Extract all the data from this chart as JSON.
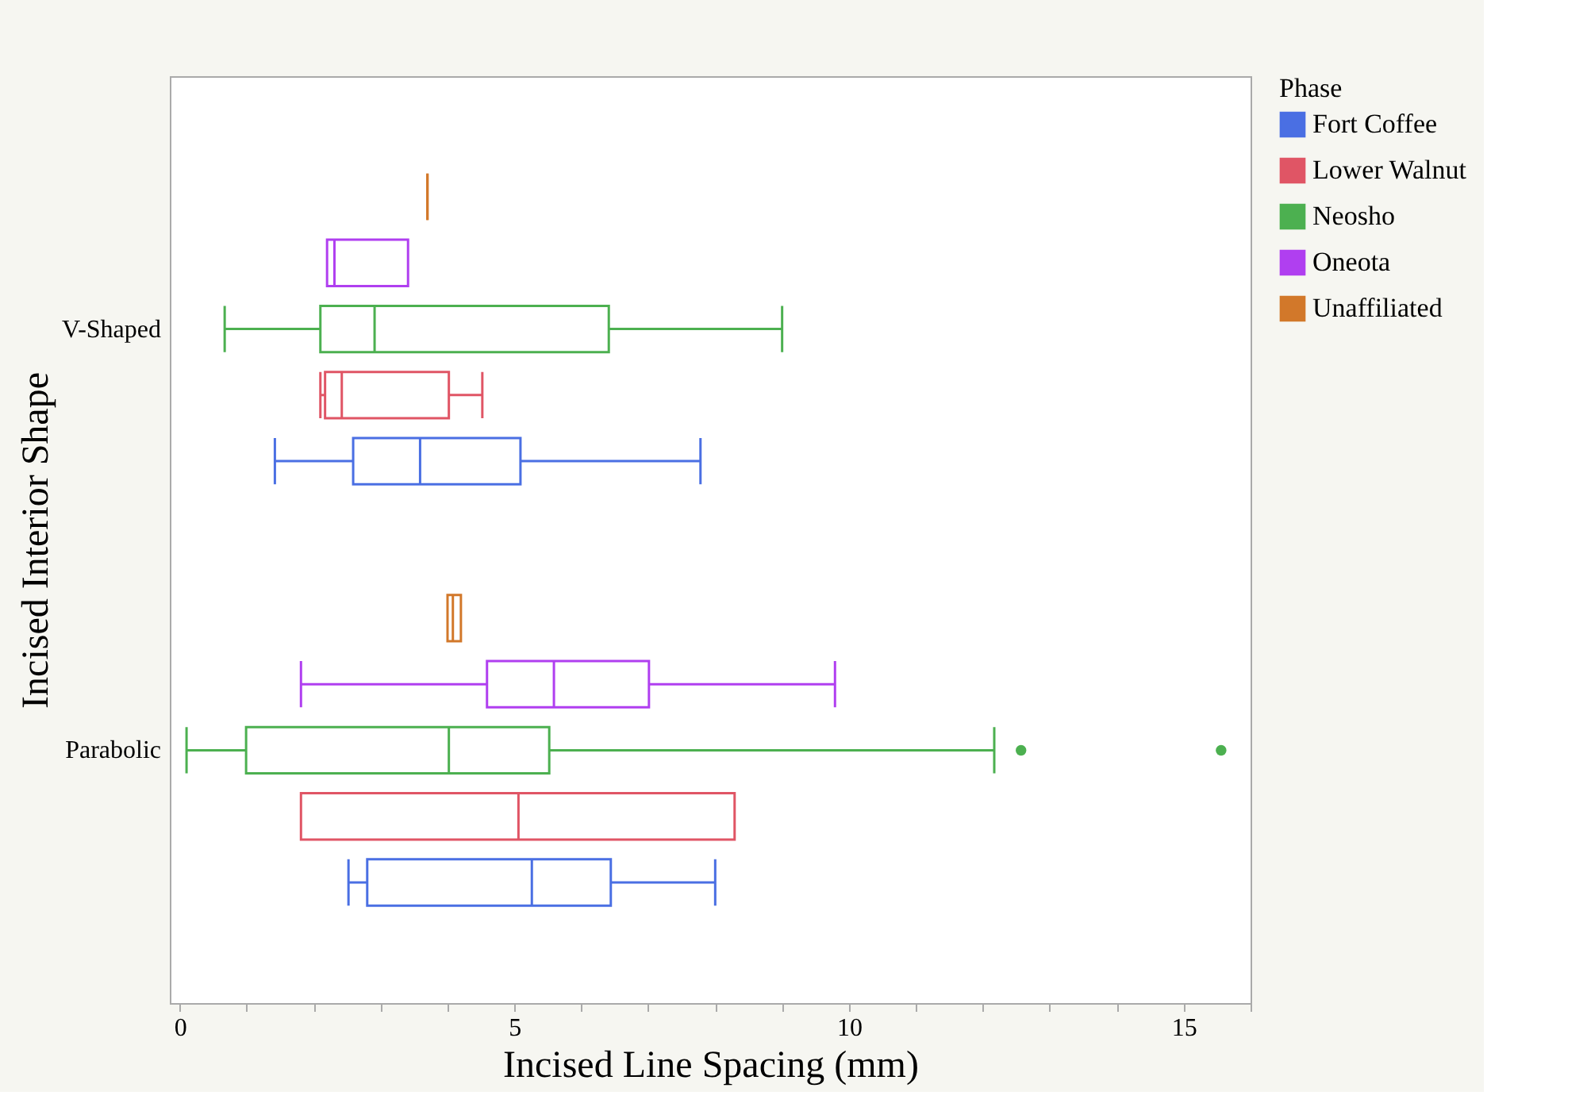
{
  "chart_data": {
    "type": "box",
    "orientation": "horizontal",
    "xlabel": "Incised Line Spacing (mm)",
    "ylabel": "Incised Interior Shape",
    "legend_title": "Phase",
    "categories": [
      "V-Shaped",
      "Parabolic"
    ],
    "series": [
      {
        "name": "Fort Coffee",
        "color": "#4a6fe3",
        "boxes": [
          {
            "low": 1.42,
            "q1": 2.59,
            "median": 3.59,
            "q3": 5.09,
            "high": 7.78
          },
          {
            "low": 2.52,
            "q1": 2.8,
            "median": 5.26,
            "q3": 6.44,
            "high": 8.0
          }
        ]
      },
      {
        "name": "Lower Walnut",
        "color": "#e05565",
        "boxes": [
          {
            "low": 2.1,
            "q1": 2.17,
            "median": 2.42,
            "q3": 4.02,
            "high": 4.52
          },
          {
            "low": 1.81,
            "q1": 1.81,
            "median": 5.06,
            "q3": 8.29,
            "high": 8.29
          }
        ]
      },
      {
        "name": "Neosho",
        "color": "#4cb050",
        "boxes": [
          {
            "low": 0.67,
            "q1": 2.1,
            "median": 2.91,
            "q3": 6.41,
            "high": 9.0
          },
          {
            "low": 0.1,
            "q1": 0.99,
            "median": 4.02,
            "q3": 5.52,
            "high": 12.17,
            "outliers": [
              12.57,
              15.56
            ]
          }
        ]
      },
      {
        "name": "Oneota",
        "color": "#b03ff0",
        "boxes": [
          {
            "low": 2.2,
            "q1": 2.2,
            "median": 2.31,
            "q3": 3.41,
            "high": 3.41
          },
          {
            "low": 1.81,
            "q1": 4.59,
            "median": 5.59,
            "q3": 7.01,
            "high": 9.79
          }
        ]
      },
      {
        "name": "Unaffiliated",
        "color": "#d2782a",
        "boxes": [
          {
            "low": 3.7,
            "q1": 3.7,
            "median": 3.7,
            "q3": 3.7,
            "high": 3.7
          },
          {
            "low": 4.0,
            "q1": 4.0,
            "median": 4.08,
            "q3": 4.2,
            "high": 4.2
          }
        ]
      }
    ],
    "xlim": [
      -0.15,
      16
    ],
    "xticks": [
      0,
      {
        "value": 1,
        "label": null
      },
      {
        "value": 2,
        "label": null
      },
      {
        "value": 3,
        "label": null
      },
      {
        "value": 4,
        "label": null
      },
      5,
      {
        "value": 6,
        "label": null
      },
      {
        "value": 7,
        "label": null
      },
      {
        "value": 8,
        "label": null
      },
      {
        "value": 9,
        "label": null
      },
      10,
      {
        "value": 11,
        "label": null
      },
      {
        "value": 12,
        "label": null
      },
      {
        "value": 13,
        "label": null
      },
      {
        "value": 14,
        "label": null
      },
      15,
      {
        "value": 16,
        "label": null
      }
    ],
    "legend": "right",
    "grid": false
  }
}
